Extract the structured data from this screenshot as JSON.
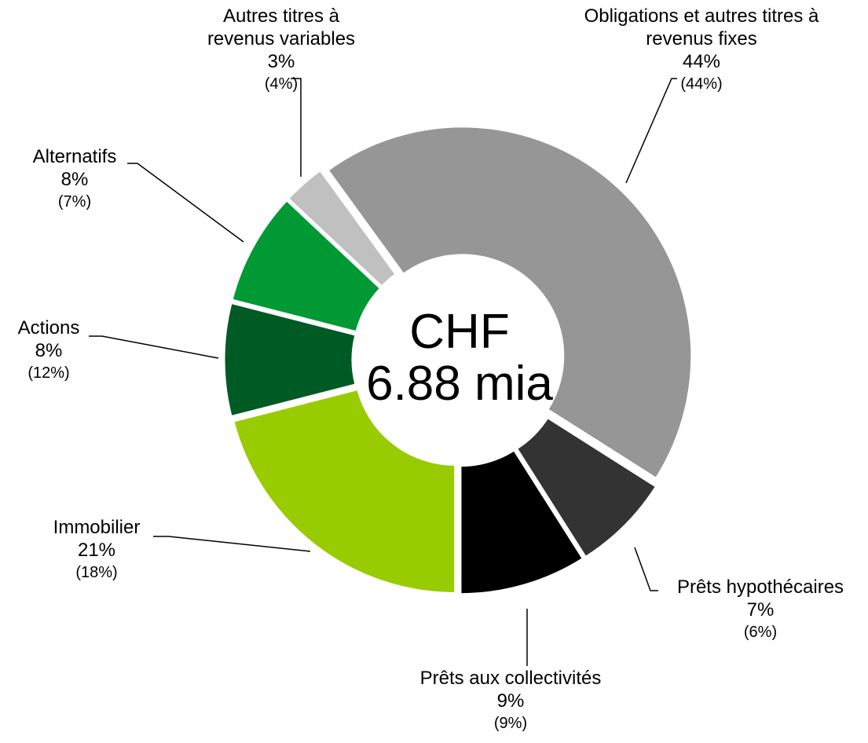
{
  "chart_data": {
    "type": "donut",
    "center_label": [
      "CHF",
      "6.88 mia"
    ],
    "categories": [
      "Obligations et autres titres à revenus fixes",
      "Prêts hypothécaires",
      "Prêts aux collectivités",
      "Immobilier",
      "Actions",
      "Alternatifs",
      "Autres titres à revenus variables"
    ],
    "values": [
      44,
      7,
      9,
      21,
      8,
      8,
      3
    ],
    "value_labels": [
      "44%",
      "7%",
      "9%",
      "21%",
      "8%",
      "8%",
      "3%"
    ],
    "previous_value_labels": [
      "(44%)",
      "(6%)",
      "(9%)",
      "(18%)",
      "(12%)",
      "(7%)",
      "(4%)"
    ],
    "colors": [
      "#969696",
      "#333333",
      "#000000",
      "#99cc00",
      "#005a24",
      "#009933",
      "#c0c0c0"
    ]
  }
}
